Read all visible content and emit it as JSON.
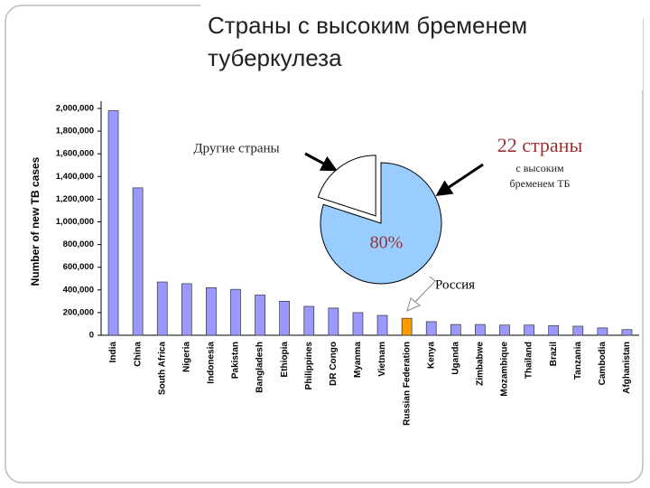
{
  "title_lines": [
    "Страны с высоким бременем",
    "туберкулеза"
  ],
  "chart_data": {
    "type": "bar",
    "ylabel": "Number of new TB cases",
    "categories": [
      "India",
      "China",
      "South Africa",
      "Nigeria",
      "Indonesia",
      "Pakistan",
      "Bangladesh",
      "Ethiopia",
      "Philippines",
      "DR Congo",
      "Myanma",
      "Vietnam",
      "Russian Federation",
      "Kenya",
      "Uganda",
      "Zimbabwe",
      "Mozambique",
      "Thailand",
      "Brazil",
      "Tanzania",
      "Cambodia",
      "Afghanistan"
    ],
    "values": [
      1980000,
      1300000,
      470000,
      455000,
      420000,
      405000,
      355000,
      300000,
      255000,
      240000,
      200000,
      175000,
      150000,
      120000,
      95000,
      95000,
      90000,
      90000,
      85000,
      80000,
      65000,
      50000
    ],
    "colors": [
      "#9999ff",
      "#9999ff",
      "#9999ff",
      "#9999ff",
      "#9999ff",
      "#9999ff",
      "#9999ff",
      "#9999ff",
      "#9999ff",
      "#9999ff",
      "#9999ff",
      "#9999ff",
      "#ff9900",
      "#9999ff",
      "#9999ff",
      "#9999ff",
      "#9999ff",
      "#9999ff",
      "#9999ff",
      "#9999ff",
      "#9999ff",
      "#9999ff"
    ],
    "ylim": [
      0,
      2000000
    ],
    "yticks": [
      0,
      {
        "value": 200000,
        "label": "200,000"
      },
      {
        "value": 400000,
        "label": "400,000"
      },
      {
        "value": 600000,
        "label": "600,000"
      },
      {
        "value": 800000,
        "label": "800,000"
      },
      {
        "value": 1000000,
        "label": "1,000,000"
      },
      {
        "value": 1200000,
        "label": "1,200,000"
      },
      {
        "value": 1400000,
        "label": "1,400,000"
      },
      {
        "value": 1600000,
        "label": "1,600,000"
      },
      {
        "value": 1800000,
        "label": "1,800,000"
      },
      {
        "value": 2000000,
        "label": "2,000,000"
      }
    ],
    "annotation": "Россия",
    "inset": {
      "type": "pie",
      "values": [
        80,
        20
      ],
      "colors": [
        "#99ccff",
        "#ffffff"
      ],
      "value_labels": [
        "80%",
        null
      ],
      "labels": [
        "22 страны",
        "Другие страны"
      ],
      "note_lines": [
        "с высоким",
        "бременем ТБ"
      ]
    }
  }
}
